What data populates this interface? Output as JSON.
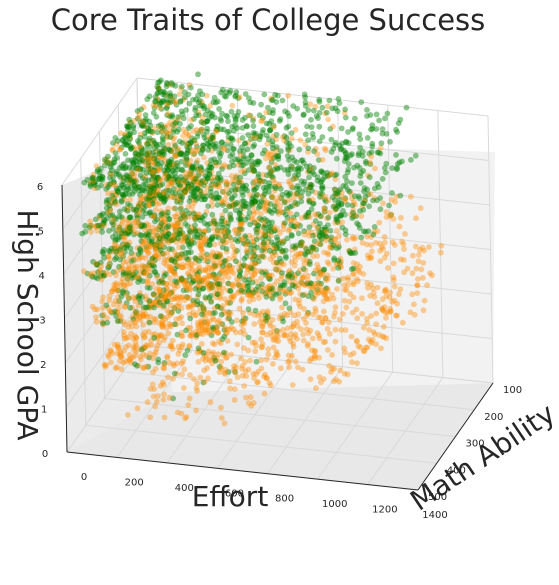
{
  "chart_data": {
    "type": "scatter",
    "projection": "3d",
    "title": "Core Traits of College Success",
    "xlabel": "Effort",
    "ylabel": "Math Ability",
    "zlabel": "High School GPA",
    "x_ticks": [
      "0",
      "200",
      "400",
      "600",
      "800",
      "1000",
      "1200",
      "1400"
    ],
    "y_ticks": [
      "100",
      "200",
      "300",
      "400",
      "500"
    ],
    "z_ticks": [
      "0",
      "1",
      "2",
      "3",
      "4",
      "5",
      "6"
    ],
    "xlim": [
      0,
      1400
    ],
    "ylim": [
      100,
      500
    ],
    "zlim": [
      0,
      6
    ],
    "grid": true,
    "series": [
      {
        "color": "#ff8c00",
        "alpha": 0.4,
        "description": "orange points, concentrated at lower GPA levels",
        "clusters": [
          {
            "z": 6,
            "x_range": [
              100,
              900
            ],
            "count": 150
          },
          {
            "z": 5,
            "x_range": [
              100,
              1000
            ],
            "count": 250
          },
          {
            "z": 4,
            "x_range": [
              100,
              1150
            ],
            "count": 450
          },
          {
            "z": 3,
            "x_range": [
              100,
              1300
            ],
            "count": 550
          },
          {
            "z": 2,
            "x_range": [
              150,
              1100
            ],
            "count": 550
          },
          {
            "z": 1,
            "x_range": [
              250,
              700
            ],
            "count": 120
          }
        ]
      },
      {
        "color": "#008000",
        "alpha": 0.45,
        "description": "green points, concentrated at higher GPA levels",
        "clusters": [
          {
            "z": 6,
            "x_range": [
              100,
              1100
            ],
            "count": 650
          },
          {
            "z": 5,
            "x_range": [
              100,
              1150
            ],
            "count": 550
          },
          {
            "z": 4,
            "x_range": [
              100,
              1050
            ],
            "count": 420
          },
          {
            "z": 3,
            "x_range": [
              150,
              900
            ],
            "count": 220
          },
          {
            "z": 2,
            "x_range": [
              250,
              650
            ],
            "count": 50
          },
          {
            "z": 1,
            "x_range": [
              300,
              600
            ],
            "count": 8
          }
        ]
      }
    ]
  }
}
